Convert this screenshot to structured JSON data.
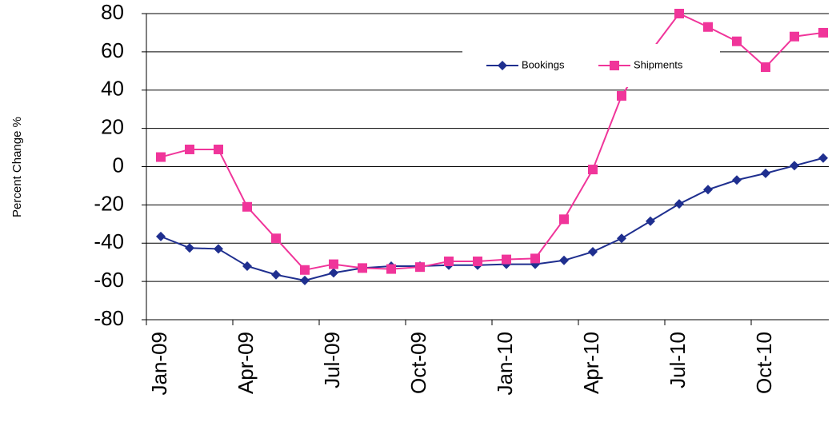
{
  "chart_data": {
    "type": "line",
    "y_label": "Percent Change %",
    "categories": [
      "Jan-09",
      null,
      null,
      "Apr-09",
      null,
      null,
      "Jul-09",
      null,
      null,
      "Oct-09",
      null,
      null,
      "Jan-10",
      null,
      null,
      "Apr-10",
      null,
      null,
      "Jul-10",
      null,
      null,
      "Oct-10",
      null,
      null
    ],
    "series": [
      {
        "name": "Bookings",
        "color": "#1f2f8f",
        "marker": "diamond",
        "values": [
          -36.5,
          -42.5,
          -43,
          -52,
          -56.5,
          -59.5,
          -55.5,
          -53,
          -52,
          -52,
          -51.5,
          -51.5,
          -51,
          -51,
          -49,
          -44.5,
          -37.5,
          -28.5,
          -19.5,
          -12,
          -7,
          -3.5,
          0.5,
          4.5
        ]
      },
      {
        "name": "Shipments",
        "color": "#f0359a",
        "marker": "square",
        "values": [
          5,
          9,
          9,
          -21,
          -37.5,
          -54,
          -51,
          -53,
          -53.5,
          -52.5,
          -49.5,
          -49.5,
          -48.5,
          -48,
          -27.5,
          -1.5,
          37,
          60,
          80,
          73,
          65.5,
          52,
          68,
          70
        ]
      }
    ],
    "ylim": [
      -80,
      80
    ],
    "yticks": [
      -80,
      -60,
      -40,
      -20,
      0,
      20,
      40,
      60,
      80
    ],
    "grid": true,
    "legend": "top-right"
  }
}
